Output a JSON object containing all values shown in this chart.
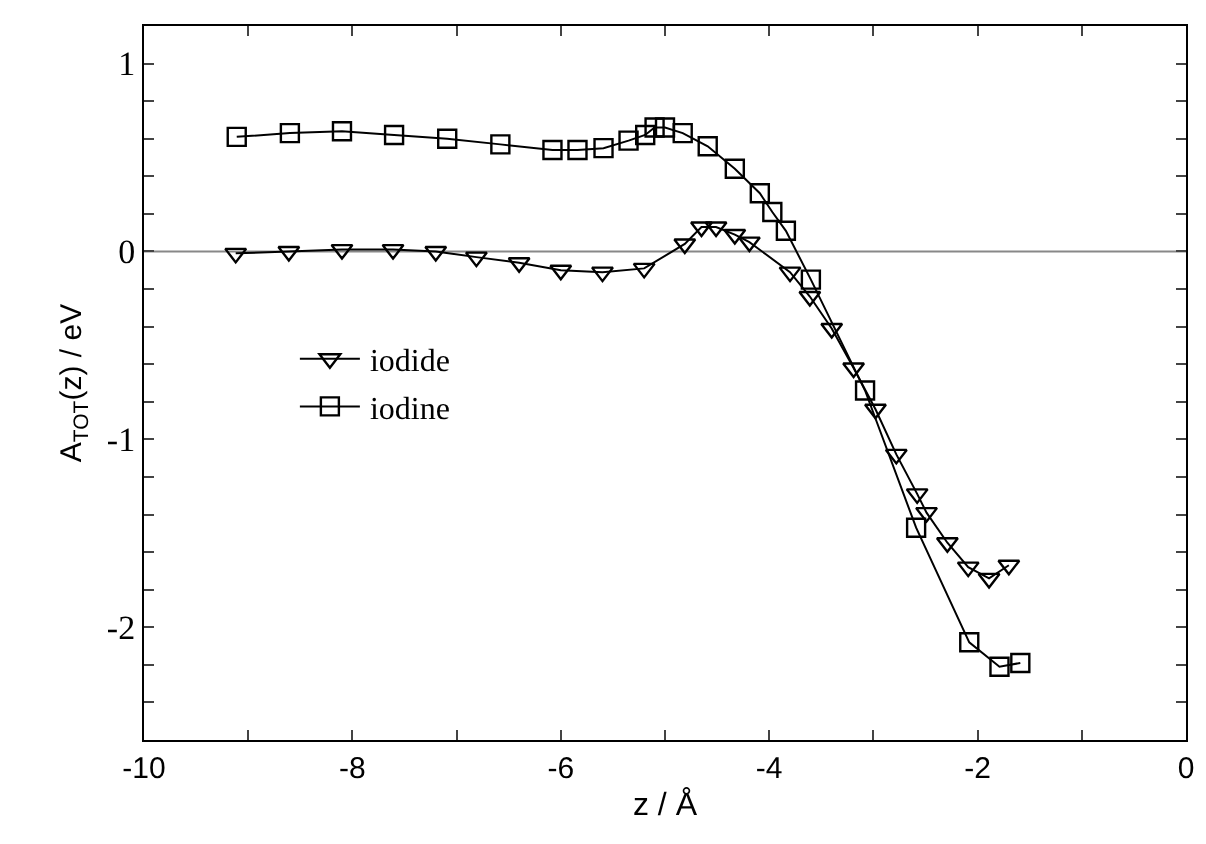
{
  "chart_data": {
    "type": "line",
    "xlabel": "z / Å",
    "ylabel": "A$_{TOT}$(z) / eV",
    "xlim": [
      -10,
      0
    ],
    "ylim": [
      -2.6,
      1.2
    ],
    "xticks": [
      -10,
      {
        "value": -9,
        "label": null
      },
      -8,
      {
        "value": -7,
        "label": null
      },
      -6,
      {
        "value": -5,
        "label": null
      },
      -4,
      {
        "value": -3,
        "label": null
      },
      -2,
      {
        "value": -1,
        "label": null
      },
      0
    ],
    "yticks": [
      {
        "value": -2.4,
        "label": null
      },
      {
        "value": -2.2,
        "label": null
      },
      -2,
      {
        "value": -1.8,
        "label": null
      },
      {
        "value": -1.6,
        "label": null
      },
      {
        "value": -1.4,
        "label": null
      },
      {
        "value": -1.2,
        "label": null
      },
      -1,
      {
        "value": -0.8,
        "label": null
      },
      {
        "value": -0.6,
        "label": null
      },
      {
        "value": -0.4,
        "label": null
      },
      {
        "value": -0.2,
        "label": null
      },
      0,
      {
        "value": 0.2,
        "label": null
      },
      {
        "value": 0.4,
        "label": null
      },
      {
        "value": 0.6,
        "label": null
      },
      {
        "value": 0.8,
        "label": null
      },
      1
    ],
    "grid": false,
    "legend": "left",
    "line_style": "solid",
    "ref_lines": [
      {
        "axis": "y",
        "value": 0,
        "color": "#888888"
      }
    ],
    "series": [
      {
        "name": "iodide",
        "color": "#000000",
        "marker": "triangle",
        "x": [
          -9.12,
          -8.61,
          -8.1,
          -7.61,
          -7.2,
          -6.81,
          -6.4,
          -6.0,
          -5.6,
          -5.2,
          -4.81,
          -4.65,
          -4.51,
          -4.33,
          -4.19,
          -3.8,
          -3.61,
          -3.4,
          -3.19,
          -2.98,
          -2.78,
          -2.58,
          -2.49,
          -2.29,
          -2.09,
          -1.89,
          -1.7
        ],
        "values": [
          -0.01,
          0.0,
          0.01,
          0.01,
          0.0,
          -0.03,
          -0.06,
          -0.1,
          -0.11,
          -0.09,
          0.04,
          0.13,
          0.13,
          0.09,
          0.05,
          -0.11,
          -0.24,
          -0.41,
          -0.62,
          -0.84,
          -1.08,
          -1.29,
          -1.39,
          -1.55,
          -1.68,
          -1.74,
          -1.67
        ]
      },
      {
        "name": "iodine",
        "color": "#000000",
        "marker": "square",
        "x": [
          -9.11,
          -8.6,
          -8.1,
          -7.6,
          -7.09,
          -6.58,
          -6.08,
          -5.84,
          -5.59,
          -5.35,
          -5.19,
          -5.1,
          -5.0,
          -4.83,
          -4.59,
          -4.33,
          -4.09,
          -3.97,
          -3.84,
          -3.6,
          -3.08,
          -2.59,
          -2.08,
          -1.79,
          -1.59
        ],
        "values": [
          0.61,
          0.63,
          0.64,
          0.62,
          0.6,
          0.57,
          0.54,
          0.54,
          0.55,
          0.59,
          0.62,
          0.66,
          0.66,
          0.63,
          0.56,
          0.44,
          0.31,
          0.21,
          0.11,
          -0.15,
          -0.74,
          -1.47,
          -2.08,
          -2.21,
          -2.19
        ]
      }
    ]
  }
}
